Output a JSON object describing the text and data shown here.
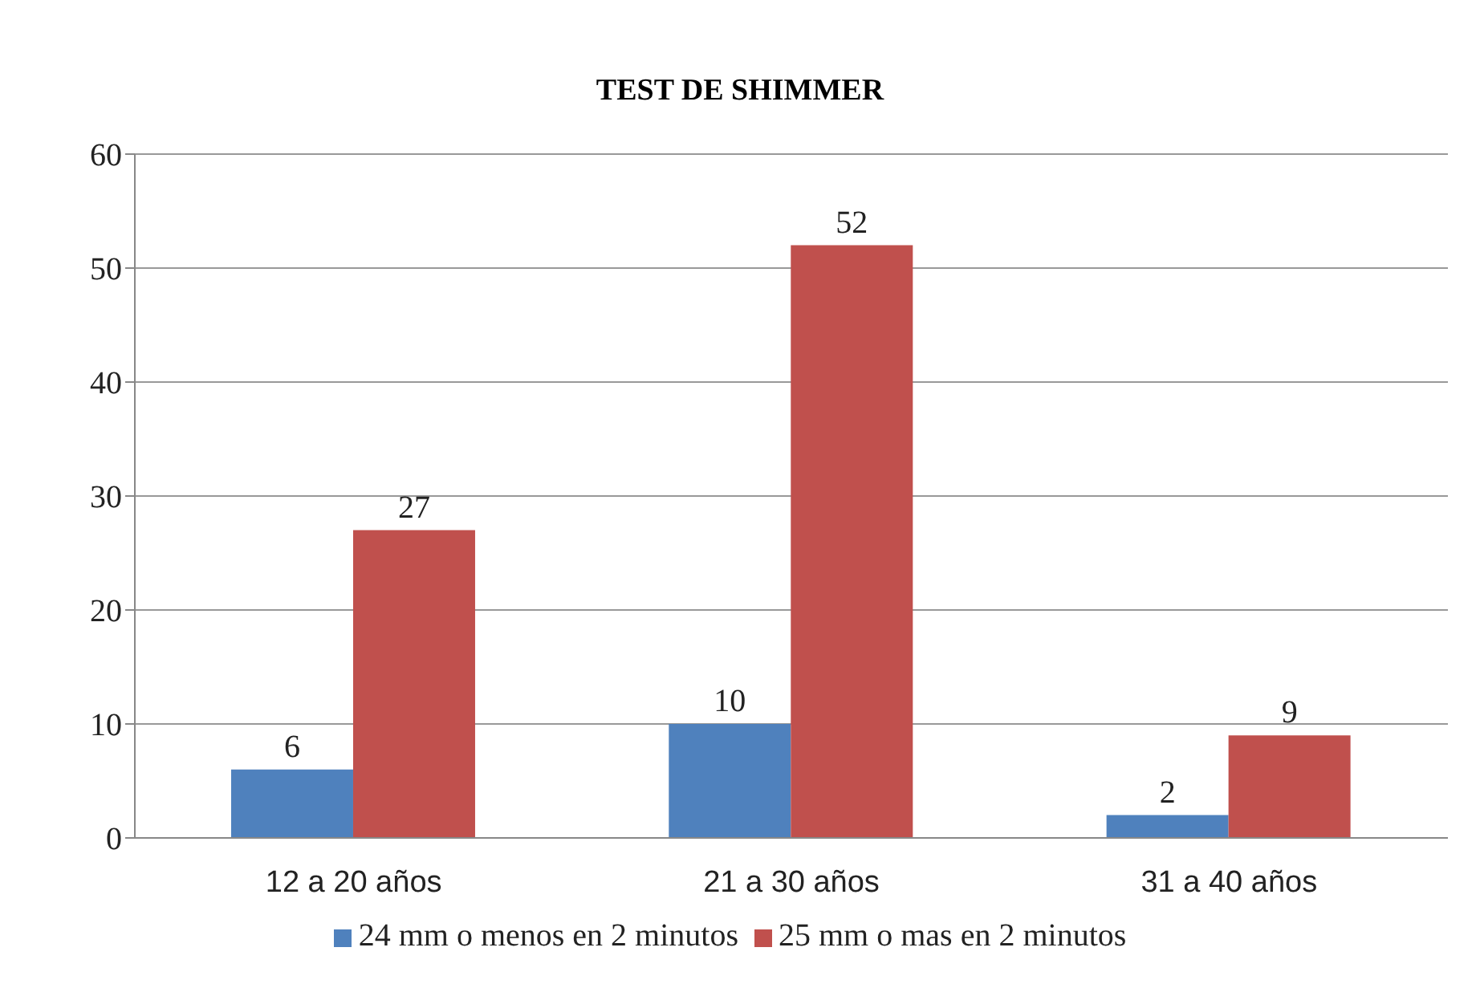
{
  "chart_data": {
    "type": "bar",
    "title": "TEST DE SHIMMER",
    "categories": [
      "12 a 20 años",
      "21 a 30 años",
      "31 a 40 años"
    ],
    "series": [
      {
        "name": "24 mm o menos en 2 minutos",
        "color": "#4f81bd",
        "values": [
          6,
          10,
          2
        ]
      },
      {
        "name": "25 mm o mas en 2 minutos",
        "color": "#c0504d",
        "values": [
          27,
          52,
          9
        ]
      }
    ],
    "ylim": [
      0,
      60
    ],
    "yticks": [
      0,
      10,
      20,
      30,
      40,
      50,
      60
    ],
    "grid": "y",
    "legend": "bottom",
    "data_labels": true
  }
}
